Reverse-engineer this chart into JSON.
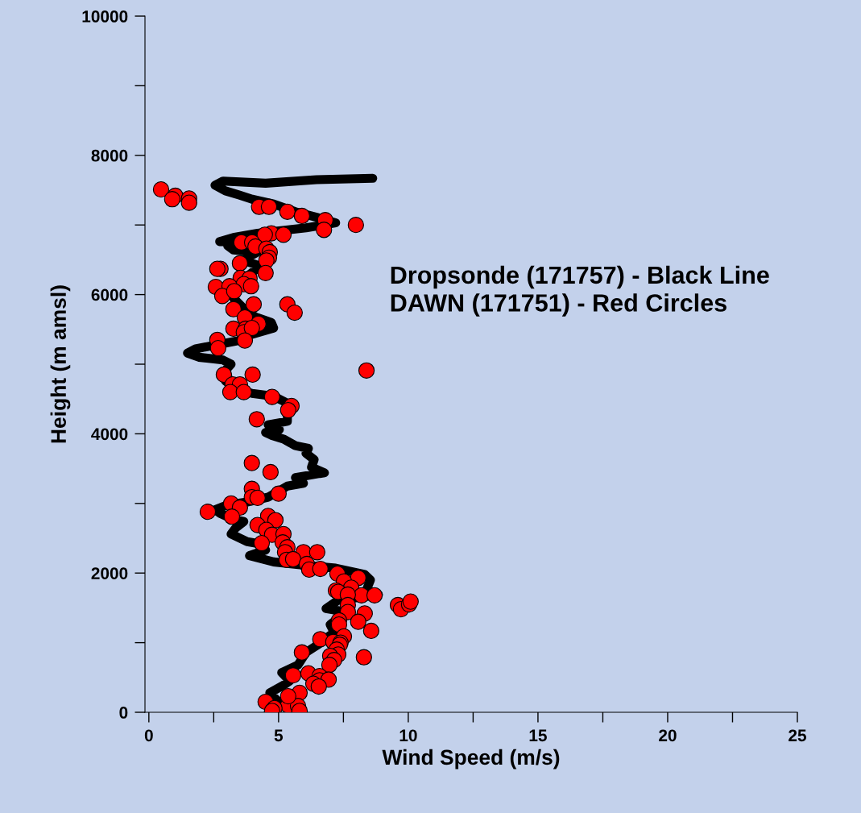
{
  "chart_data": {
    "type": "line",
    "xlabel": "Wind Speed (m/s)",
    "ylabel": "Height (m amsl)",
    "annotations": [
      "Dropsonde (171757) - Black Line",
      "DAWN (171751) - Red Circles"
    ],
    "xlim": [
      -0.15,
      25
    ],
    "ylim": [
      0,
      10000
    ],
    "xticks": [
      0,
      {
        "value": 2.5,
        "label": null
      },
      5,
      {
        "value": 7.5,
        "label": null
      },
      10,
      {
        "value": 12.5,
        "label": null
      },
      15,
      {
        "value": 17.5,
        "label": null
      },
      20,
      {
        "value": 22.5,
        "label": null
      },
      25
    ],
    "yticks": [
      0,
      {
        "value": 1000,
        "label": null
      },
      2000,
      {
        "value": 3000,
        "label": null
      },
      4000,
      {
        "value": 5000,
        "label": null
      },
      6000,
      {
        "value": 7000,
        "label": null
      },
      8000,
      {
        "value": 9000,
        "label": null
      },
      10000
    ],
    "grid": false,
    "legend": false,
    "series": [
      {
        "color": "#000000",
        "marker": "none",
        "line_style": "solid",
        "x": [
          4.81,
          4.97,
          4.66,
          5.19,
          5.43,
          5.12,
          5.75,
          6.06,
          6.52,
          7.14,
          6.99,
          7.61,
          6.83,
          7.3,
          8.85,
          8.39,
          8.54,
          8.32,
          7.2,
          6.06,
          4.81,
          3.88,
          4.5,
          4.29,
          3.79,
          3.17,
          3.35,
          3.66,
          3.26,
          2.73,
          2.55,
          3.04,
          3.79,
          4.6,
          5.34,
          5.96,
          5.65,
          6.58,
          6.77,
          6.27,
          6.37,
          6.06,
          6.15,
          5.65,
          5.22,
          4.72,
          4.5,
          5.03,
          4.6,
          5.34,
          5.34,
          4.81,
          3.98,
          3.35,
          2.95,
          3.04,
          2.95,
          3.17,
          2.86,
          1.93,
          1.49,
          1.8,
          2.64,
          3.48,
          3.98,
          4.81,
          4.72,
          4.1,
          3.66,
          3.26,
          3.48,
          3.79,
          4.29,
          3.66,
          3.79,
          4.19,
          3.26,
          3.04,
          3.57,
          2.73,
          3.26,
          4.19,
          6.06,
          7.2,
          6.46,
          5.65,
          4.81,
          3.98,
          3.48,
          2.95,
          2.55,
          2.86,
          4.5,
          6.46,
          8.63
        ],
        "values": [
          50,
          160,
          280,
          390,
          450,
          570,
          680,
          860,
          970,
          1150,
          1260,
          1440,
          1490,
          1610,
          1690,
          1760,
          1900,
          1980,
          2070,
          2110,
          2160,
          2250,
          2330,
          2420,
          2450,
          2560,
          2650,
          2740,
          2770,
          2860,
          2910,
          2980,
          3020,
          3090,
          3250,
          3290,
          3370,
          3430,
          3440,
          3520,
          3630,
          3720,
          3790,
          3830,
          3920,
          3980,
          4020,
          4060,
          4130,
          4180,
          4440,
          4540,
          4580,
          4650,
          4760,
          4830,
          4910,
          5000,
          5060,
          5100,
          5160,
          5220,
          5280,
          5340,
          5430,
          5520,
          5600,
          5680,
          5800,
          5950,
          6150,
          6260,
          6410,
          6490,
          6530,
          6610,
          6640,
          6700,
          6760,
          6760,
          6820,
          6880,
          6960,
          7030,
          7110,
          7190,
          7300,
          7370,
          7430,
          7490,
          7570,
          7630,
          7600,
          7650,
          7670
        ]
      },
      {
        "type": "scatter",
        "color": "#ff0000",
        "marker": "circle",
        "x": [
          0.47,
          1.02,
          0.9,
          1.55,
          1.55,
          4.25,
          4.63,
          5.34,
          5.9,
          6.8,
          7.98,
          6.75,
          4.72,
          5.19,
          4.47,
          3.57,
          3.98,
          4.11,
          4.53,
          4.66,
          4.63,
          4.53,
          3.51,
          2.76,
          2.64,
          4.5,
          3.54,
          3.88,
          3.66,
          3.94,
          2.58,
          3.11,
          2.83,
          3.29,
          5.34,
          5.62,
          3.26,
          4.04,
          3.7,
          4.22,
          3.26,
          3.73,
          3.66,
          3.97,
          2.64,
          3.7,
          2.67,
          2.89,
          4.0,
          8.39,
          3.23,
          3.51,
          3.14,
          3.66,
          4.75,
          5.5,
          5.37,
          4.16,
          3.97,
          4.69,
          3.97,
          5.0,
          3.97,
          4.19,
          3.17,
          3.51,
          2.27,
          3.2,
          4.6,
          4.88,
          4.19,
          4.53,
          4.75,
          5.19,
          4.35,
          5.16,
          5.34,
          5.25,
          5.96,
          6.49,
          5.31,
          5.56,
          6.09,
          6.18,
          6.61,
          7.27,
          8.07,
          7.52,
          7.8,
          7.21,
          7.3,
          8.2,
          8.7,
          7.67,
          9.6,
          9.72,
          10.03,
          10.09,
          7.67,
          7.67,
          8.32,
          8.07,
          8.57,
          7.33,
          7.33,
          7.52,
          6.61,
          7.11,
          7.39,
          7.36,
          7.24,
          7.3,
          8.29,
          5.9,
          6.99,
          7.14,
          6.96,
          6.15,
          6.58,
          5.56,
          6.58,
          6.93,
          6.34,
          6.55,
          5.81,
          4.5,
          5.37,
          5.75,
          5.37,
          4.84,
          5.81,
          4.75
        ],
        "values": [
          7510,
          7420,
          7370,
          7380,
          7320,
          7260,
          7260,
          7190,
          7130,
          7070,
          7000,
          6930,
          6880,
          6860,
          6860,
          6750,
          6750,
          6690,
          6660,
          6610,
          6530,
          6490,
          6450,
          6370,
          6370,
          6310,
          6240,
          6230,
          6150,
          6120,
          6110,
          6120,
          5980,
          6050,
          5860,
          5740,
          5790,
          5860,
          5670,
          5580,
          5510,
          5510,
          5460,
          5520,
          5350,
          5340,
          5230,
          4850,
          4850,
          4910,
          4710,
          4710,
          4600,
          4600,
          4530,
          4400,
          4340,
          4210,
          3580,
          3450,
          3210,
          3140,
          3090,
          3080,
          3000,
          2940,
          2880,
          2810,
          2820,
          2760,
          2690,
          2620,
          2550,
          2560,
          2430,
          2440,
          2370,
          2300,
          2300,
          2300,
          2190,
          2200,
          2130,
          2050,
          2060,
          1990,
          1930,
          1880,
          1790,
          1750,
          1730,
          1680,
          1680,
          1690,
          1540,
          1480,
          1550,
          1590,
          1540,
          1440,
          1420,
          1300,
          1170,
          1320,
          1260,
          1090,
          1050,
          1010,
          1000,
          970,
          900,
          830,
          790,
          860,
          810,
          750,
          680,
          560,
          520,
          530,
          460,
          470,
          410,
          370,
          280,
          150,
          100,
          90,
          230,
          60,
          20,
          20
        ]
      }
    ]
  }
}
